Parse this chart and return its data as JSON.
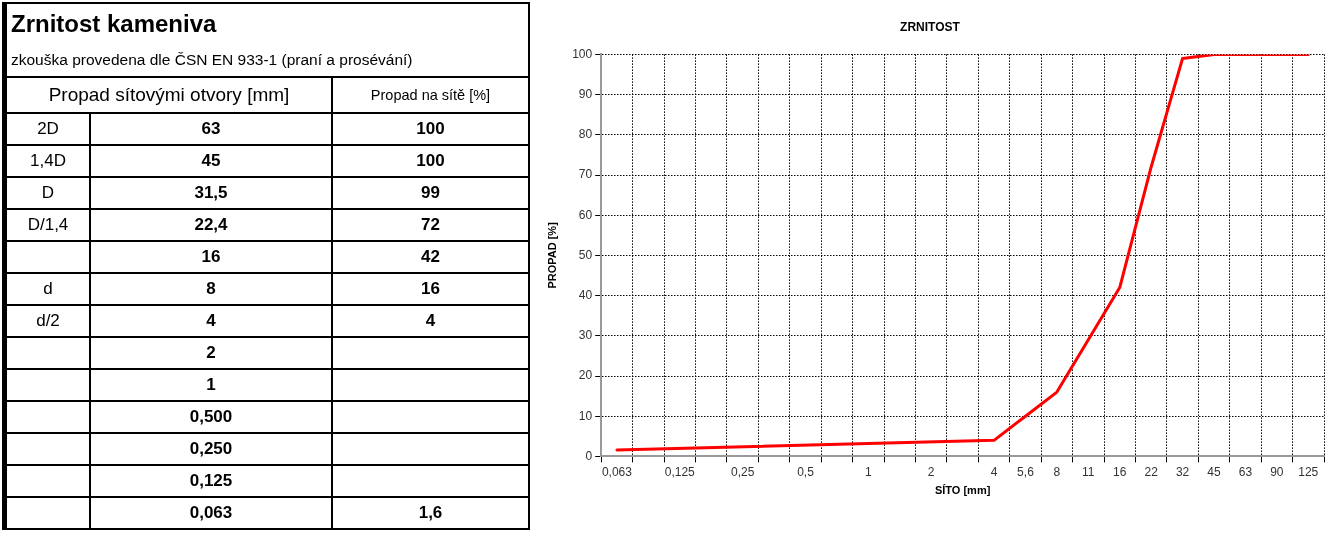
{
  "chart_data": [
    {
      "type": "other",
      "title": "Zrnitost kameniva",
      "subtitle": "zkouška provedena dle ČSN EN 933-1 (praní a prosévání)",
      "categories": [
        "Propad sítovými otvory [mm]",
        "Propad na sítě [%]"
      ],
      "y_categories": [
        "2D",
        "1,4D",
        "D",
        "D/1,4",
        null,
        "d",
        "d/2",
        null,
        null,
        null,
        null,
        null,
        null
      ],
      "cell_labels": [
        [
          "63",
          "100"
        ],
        [
          "45",
          "100"
        ],
        [
          "31,5",
          "99"
        ],
        [
          "22,4",
          "72"
        ],
        [
          "16",
          "42"
        ],
        [
          "8",
          "16"
        ],
        [
          "4",
          "4"
        ],
        [
          "2",
          null
        ],
        [
          "1",
          null
        ],
        [
          "0,500",
          null
        ],
        [
          "0,250",
          null
        ],
        [
          "0,125",
          null
        ],
        [
          "0,063",
          "1,6"
        ]
      ]
    },
    {
      "type": "line",
      "title": "ZRNITOST",
      "xlabel": "SÍTO [mm]",
      "ylabel": "PROPAD [%]",
      "categories": [
        "0,063",
        null,
        "0,125",
        null,
        "0,25",
        null,
        "0,5",
        null,
        "1",
        null,
        "2",
        null,
        "4",
        "5,6",
        "8",
        "11",
        "16",
        "22",
        "32",
        "45",
        "63",
        "90",
        "125"
      ],
      "series": [
        {
          "color": "#ff0000",
          "values": [
            1.6,
            null,
            null,
            null,
            null,
            null,
            null,
            null,
            null,
            null,
            null,
            null,
            4,
            10,
            16,
            29,
            42,
            72,
            99,
            100,
            100,
            100,
            100
          ]
        }
      ],
      "ylim": [
        0,
        100
      ],
      "yticks": [
        0,
        10,
        20,
        30,
        40,
        50,
        60,
        70,
        80,
        90,
        100
      ],
      "grid": true,
      "legend": false,
      "marker": "none",
      "line_style": "solid"
    }
  ]
}
